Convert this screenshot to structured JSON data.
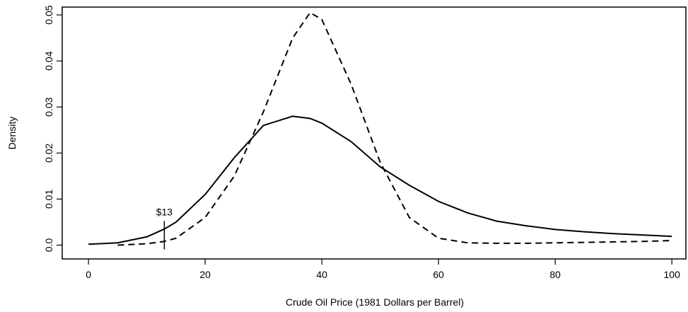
{
  "chart_data": {
    "type": "line",
    "xlabel": "Crude Oil Price (1981 Dollars per Barrel)",
    "ylabel": "Density",
    "x": [
      0,
      5,
      10,
      13,
      15,
      20,
      25,
      30,
      35,
      38,
      40,
      45,
      50,
      55,
      60,
      65,
      70,
      75,
      80,
      85,
      90,
      95,
      100
    ],
    "series": [
      {
        "color": "#000000",
        "dash": "solid",
        "values": [
          0.0002,
          0.0005,
          0.0018,
          0.0035,
          0.005,
          0.011,
          0.019,
          0.026,
          0.028,
          0.0275,
          0.0265,
          0.0225,
          0.017,
          0.013,
          0.0095,
          0.007,
          0.0052,
          0.0042,
          0.0034,
          0.0029,
          0.0025,
          0.0022,
          0.0019
        ]
      },
      {
        "color": "#000000",
        "dash": "dashed",
        "values": [
          null,
          0.0,
          0.0003,
          0.0008,
          0.0015,
          0.006,
          0.015,
          0.029,
          0.045,
          0.0505,
          0.049,
          0.035,
          0.018,
          0.006,
          0.0015,
          0.0005,
          0.0004,
          0.0004,
          0.0005,
          0.0006,
          0.0007,
          0.0008,
          0.001
        ]
      }
    ],
    "annotations": [
      {
        "text": "$13",
        "x": 13
      }
    ],
    "xlim": [
      -4.5,
      102.4
    ],
    "ylim": [
      -0.003,
      0.0517
    ],
    "xticks": [
      0,
      20,
      40,
      60,
      80,
      100
    ],
    "yticks": [
      {
        "value": 0,
        "label": "0.0"
      },
      0.01,
      0.02,
      0.03,
      0.04,
      0.05
    ]
  }
}
